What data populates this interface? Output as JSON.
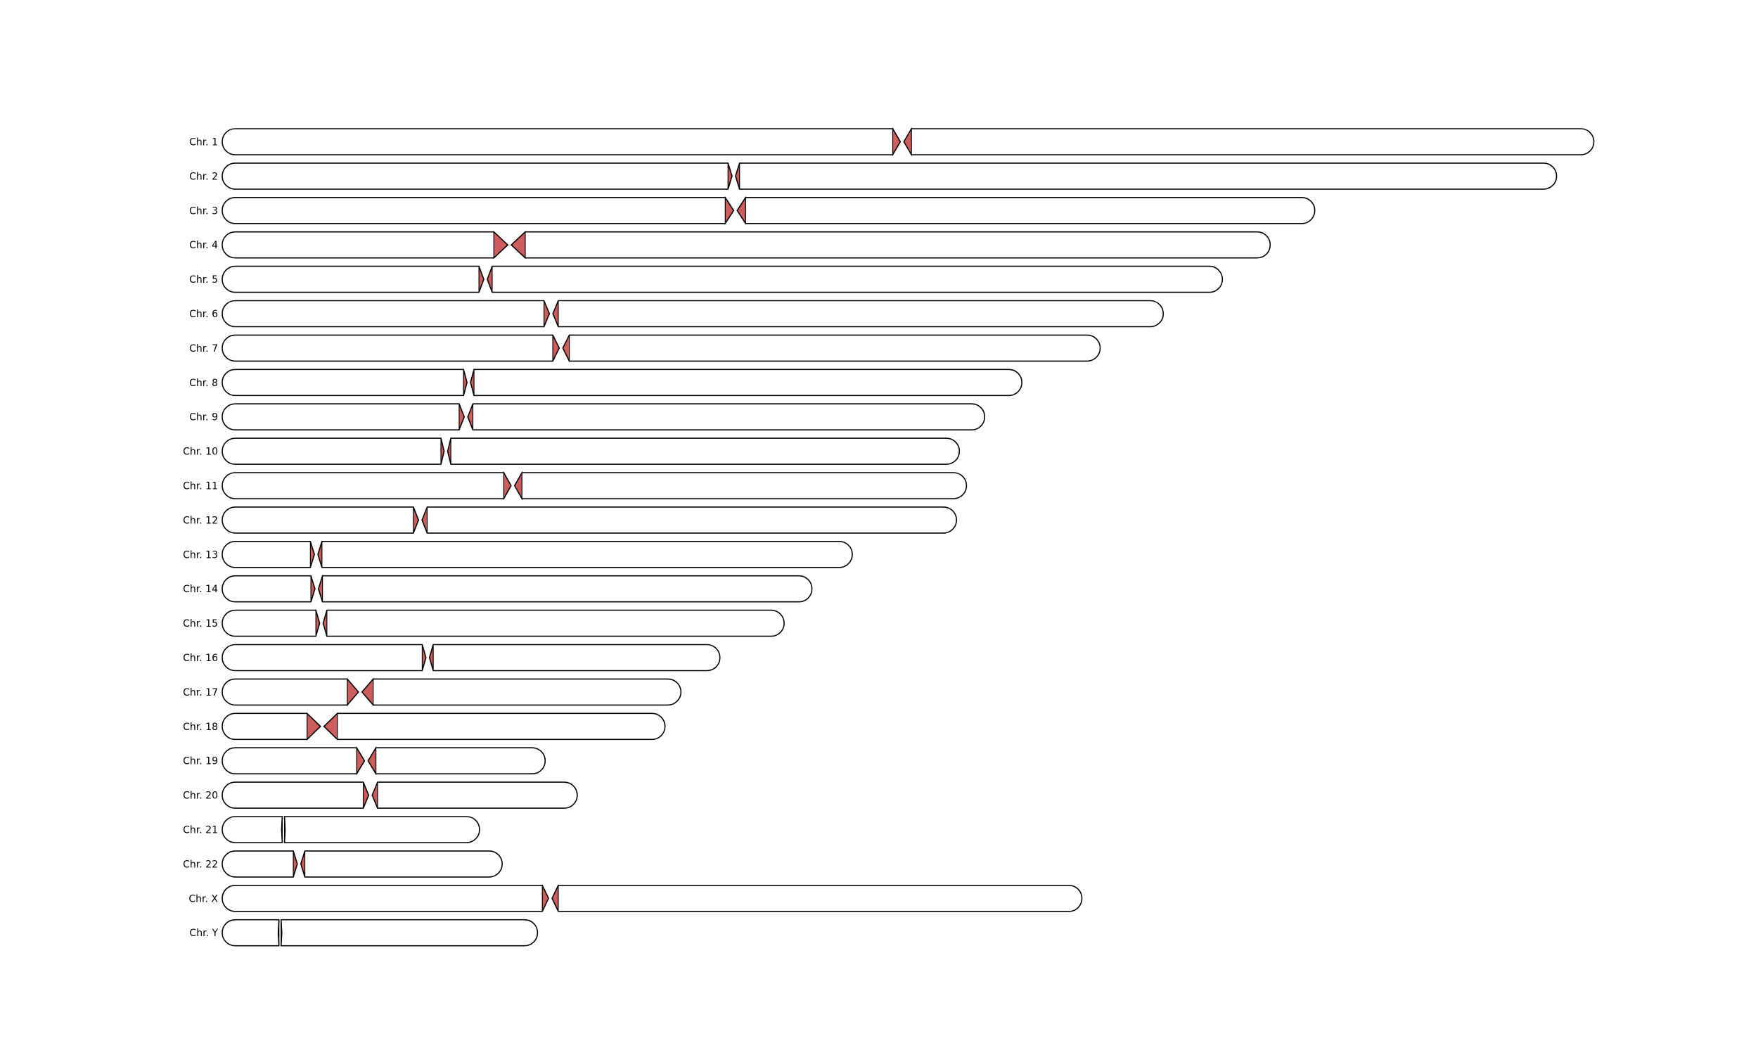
{
  "diagram": {
    "type": "chromosome-ideogram",
    "centromere_color": "#cd5c5c",
    "outline_color": "#000000",
    "fill_color": "#ffffff",
    "units": "Mb",
    "chromosomes": [
      {
        "label": "Chr. 1",
        "length": 248.96,
        "cen_start": 121.7,
        "cen_end": 125.1
      },
      {
        "label": "Chr. 2",
        "length": 242.19,
        "cen_start": 91.8,
        "cen_end": 93.9
      },
      {
        "label": "Chr. 3",
        "length": 198.3,
        "cen_start": 91.3,
        "cen_end": 95.0
      },
      {
        "label": "Chr. 4",
        "length": 190.21,
        "cen_start": 49.3,
        "cen_end": 55.0
      },
      {
        "label": "Chr. 5",
        "length": 181.54,
        "cen_start": 46.6,
        "cen_end": 49.0
      },
      {
        "label": "Chr. 6",
        "length": 170.81,
        "cen_start": 58.4,
        "cen_end": 61.0
      },
      {
        "label": "Chr. 7",
        "length": 159.35,
        "cen_start": 60.0,
        "cen_end": 63.0
      },
      {
        "label": "Chr. 8",
        "length": 145.14,
        "cen_start": 43.8,
        "cen_end": 45.7
      },
      {
        "label": "Chr. 9",
        "length": 138.39,
        "cen_start": 43.0,
        "cen_end": 45.5
      },
      {
        "label": "Chr. 10",
        "length": 133.8,
        "cen_start": 39.7,
        "cen_end": 41.5
      },
      {
        "label": "Chr. 11",
        "length": 135.09,
        "cen_start": 51.1,
        "cen_end": 54.4
      },
      {
        "label": "Chr. 12",
        "length": 133.28,
        "cen_start": 34.7,
        "cen_end": 37.2
      },
      {
        "label": "Chr. 13",
        "length": 114.36,
        "cen_start": 16.0,
        "cen_end": 18.1
      },
      {
        "label": "Chr. 14",
        "length": 107.04,
        "cen_start": 16.1,
        "cen_end": 18.2
      },
      {
        "label": "Chr. 15",
        "length": 101.99,
        "cen_start": 17.0,
        "cen_end": 19.0
      },
      {
        "label": "Chr. 16",
        "length": 90.34,
        "cen_start": 36.3,
        "cen_end": 38.3
      },
      {
        "label": "Chr. 17",
        "length": 83.26,
        "cen_start": 22.7,
        "cen_end": 27.4
      },
      {
        "label": "Chr. 18",
        "length": 80.37,
        "cen_start": 15.4,
        "cen_end": 20.9
      },
      {
        "label": "Chr. 19",
        "length": 58.62,
        "cen_start": 24.4,
        "cen_end": 27.9
      },
      {
        "label": "Chr. 20",
        "length": 64.44,
        "cen_start": 25.6,
        "cen_end": 28.2
      },
      {
        "label": "Chr. 21",
        "length": 46.71,
        "cen_start": 10.9,
        "cen_end": 11.3
      },
      {
        "label": "Chr. 22",
        "length": 50.82,
        "cen_start": 12.9,
        "cen_end": 15.0
      },
      {
        "label": "Chr. X",
        "length": 156.04,
        "cen_start": 58.1,
        "cen_end": 61.0
      },
      {
        "label": "Chr. Y",
        "length": 57.23,
        "cen_start": 10.3,
        "cen_end": 10.6
      }
    ]
  }
}
